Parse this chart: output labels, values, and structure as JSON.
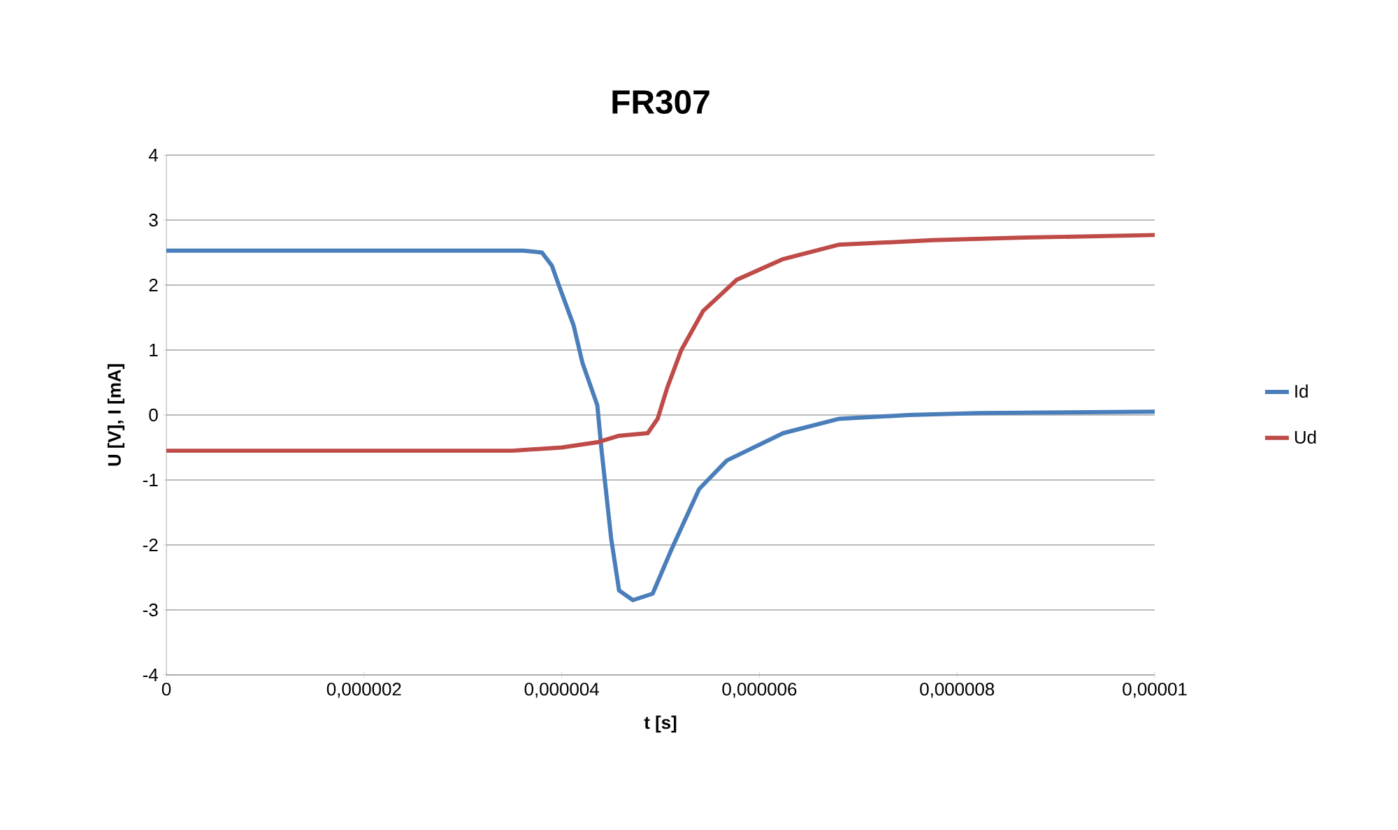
{
  "chart_data": {
    "type": "line",
    "title": "FR307",
    "xlabel": "t [s]",
    "ylabel": "U [V], I [mA]",
    "xlim": [
      0,
      1e-05
    ],
    "ylim": [
      -4,
      4
    ],
    "xticks": [
      {
        "value": 0,
        "label": "0"
      },
      {
        "value": 2e-06,
        "label": "0,000002"
      },
      {
        "value": 4e-06,
        "label": "0,000004"
      },
      {
        "value": 6e-06,
        "label": "0,000006"
      },
      {
        "value": 8e-06,
        "label": "0,000008"
      },
      {
        "value": 1e-05,
        "label": "0,00001"
      }
    ],
    "yticks": [
      -4,
      -3,
      -2,
      -1,
      0,
      1,
      2,
      3,
      4
    ],
    "grid": "y",
    "legend": "right",
    "marker": "none",
    "line_style": "solid",
    "series": [
      {
        "name": "Id",
        "color": "#4a7ebb",
        "x": [
          0,
          1.85e-06,
          3.61e-06,
          3.8e-06,
          3.9e-06,
          3.97e-06,
          4.12e-06,
          4.21e-06,
          4.36e-06,
          4.4e-06,
          4.5e-06,
          4.58e-06,
          4.72e-06,
          4.92e-06,
          5.11e-06,
          5.39e-06,
          5.67e-06,
          6.24e-06,
          6.8e-06,
          7.51e-06,
          8.22e-06,
          1e-05
        ],
        "values": [
          2.53,
          2.53,
          2.53,
          2.5,
          2.3,
          2.0,
          1.38,
          0.8,
          0.15,
          -0.5,
          -1.9,
          -2.7,
          -2.85,
          -2.75,
          -2.07,
          -1.14,
          -0.7,
          -0.28,
          -0.06,
          0,
          0.03,
          0.05
        ]
      },
      {
        "name": "Ud",
        "color": "#be4b48",
        "x": [
          0,
          3.5e-06,
          4e-06,
          4.36e-06,
          4.58e-06,
          4.87e-06,
          4.97e-06,
          5.07e-06,
          5.21e-06,
          5.43e-06,
          5.77e-06,
          6.24e-06,
          6.8e-06,
          7.75e-06,
          8.68e-06,
          1e-05
        ],
        "values": [
          -0.55,
          -0.55,
          -0.5,
          -0.42,
          -0.32,
          -0.28,
          -0.06,
          0.43,
          1.0,
          1.6,
          2.08,
          2.4,
          2.62,
          2.69,
          2.73,
          2.77
        ]
      }
    ]
  }
}
